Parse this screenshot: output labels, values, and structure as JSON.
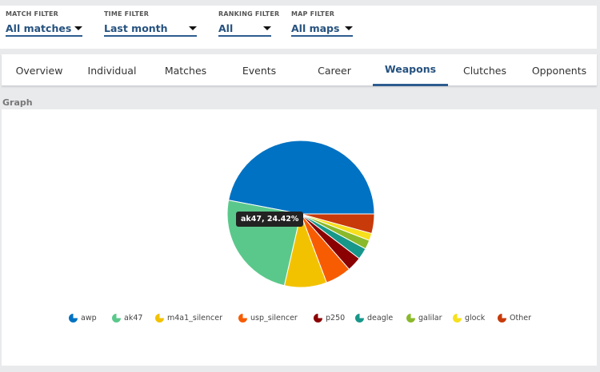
{
  "filters": [
    {
      "label": "MATCH FILTER",
      "value": "All matches"
    },
    {
      "label": "TIME FILTER",
      "value": "Last month"
    },
    {
      "label": "RANKING FILTER",
      "value": "All"
    },
    {
      "label": "MAP FILTER",
      "value": "All maps"
    }
  ],
  "tabs": [
    "Overview",
    "Individual",
    "Matches",
    "Events",
    "Career",
    "Weapons",
    "Clutches",
    "Opponents"
  ],
  "active_tab": "Weapons",
  "section_title": "Graph",
  "tooltip": "ak47, 24.42%",
  "chart_data": {
    "type": "pie",
    "series": [
      {
        "name": "awp",
        "value": 47.0,
        "color": "#0072c3"
      },
      {
        "name": "ak47",
        "value": 24.42,
        "color": "#5bc88b"
      },
      {
        "name": "m4a1_silencer",
        "value": 9.3,
        "color": "#f2c200"
      },
      {
        "name": "usp_silencer",
        "value": 5.7,
        "color": "#f75c03"
      },
      {
        "name": "p250",
        "value": 3.2,
        "color": "#8b0000"
      },
      {
        "name": "deagle",
        "value": 2.5,
        "color": "#17978a"
      },
      {
        "name": "galilar",
        "value": 2.0,
        "color": "#8ab92b"
      },
      {
        "name": "glock",
        "value": 1.6,
        "color": "#f7e01c"
      },
      {
        "name": "Other",
        "value": 4.28,
        "color": "#c83a0a"
      }
    ]
  }
}
